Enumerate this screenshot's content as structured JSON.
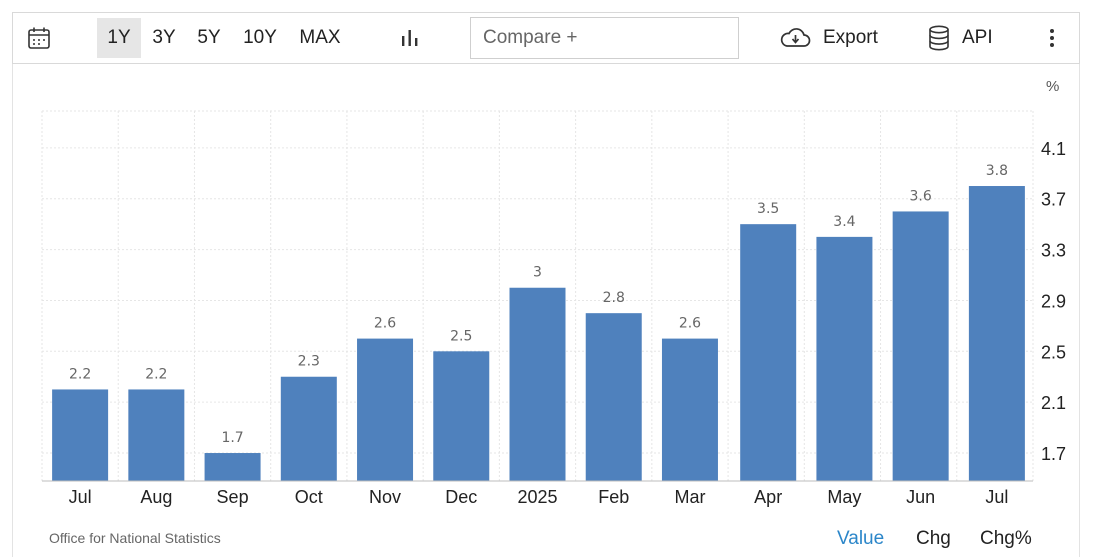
{
  "toolbar": {
    "ranges": [
      "1Y",
      "3Y",
      "5Y",
      "10Y",
      "MAX"
    ],
    "active_range": "1Y",
    "compare_placeholder": "Compare +",
    "export_label": "Export",
    "api_label": "API"
  },
  "unit_label": "%",
  "source": "Office for National Statistics",
  "view_tabs": [
    "Value",
    "Chg",
    "Chg%"
  ],
  "active_view": "Value",
  "colors": {
    "bar": "#4f81bd",
    "active_tab": "#2b86c9",
    "grid": "#e6e6e6"
  },
  "chart_data": {
    "type": "bar",
    "categories": [
      "Jul",
      "Aug",
      "Sep",
      "Oct",
      "Nov",
      "Dec",
      "2025",
      "Feb",
      "Mar",
      "Apr",
      "May",
      "Jun",
      "Jul"
    ],
    "values": [
      2.2,
      2.2,
      1.7,
      2.3,
      2.6,
      2.5,
      3,
      2.8,
      2.6,
      3.5,
      3.4,
      3.6,
      3.8
    ],
    "data_labels": [
      "2.2",
      "2.2",
      "1.7",
      "2.3",
      "2.6",
      "2.5",
      "3",
      "2.8",
      "2.6",
      "3.5",
      "3.4",
      "3.6",
      "3.8"
    ],
    "yticks": [
      1.7,
      2.1,
      2.5,
      2.9,
      3.3,
      3.7,
      4.1
    ],
    "ytick_labels": [
      "1.7",
      "2.1",
      "2.5",
      "2.9",
      "3.3",
      "3.7",
      "4.1"
    ],
    "ylim": [
      1.48,
      4.39
    ],
    "grid": true,
    "ylabel": "%",
    "xlabel": "",
    "title": ""
  }
}
